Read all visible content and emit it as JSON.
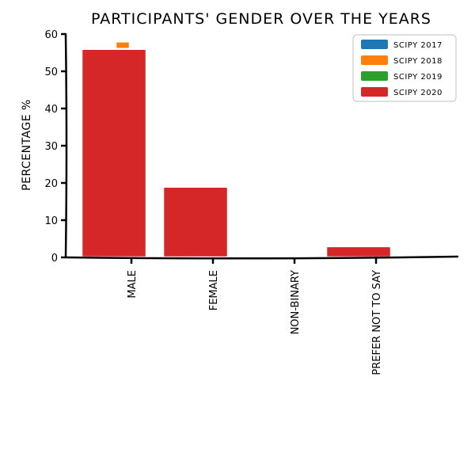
{
  "chart_data": {
    "type": "bar",
    "title": "PARTICIPANTS' GENDER OVER THE YEARS",
    "xlabel": "",
    "ylabel": "PERCENTAGE %",
    "categories": [
      "MALE",
      "FEMALE",
      "NON-BINARY",
      "PREFER NOT TO SAY"
    ],
    "ylim": [
      0,
      60
    ],
    "yticks": [
      "0",
      "10",
      "20",
      "30",
      "40",
      "50",
      "60"
    ],
    "grid": false,
    "legend_position": "top-right",
    "series": [
      {
        "name": "SCIPY 2017",
        "color": "#1f77b4",
        "values": [
          55,
          15,
          0,
          2
        ]
      },
      {
        "name": "SCIPY 2018",
        "color": "#ff7f0e",
        "values": [
          58,
          18,
          0,
          2.5
        ]
      },
      {
        "name": "SCIPY 2019",
        "color": "#2ca02c",
        "values": [
          56,
          19.5,
          0,
          2.5
        ]
      },
      {
        "name": "SCIPY 2020",
        "color": "#d62728",
        "values": [
          56,
          19,
          0,
          3
        ]
      }
    ]
  }
}
